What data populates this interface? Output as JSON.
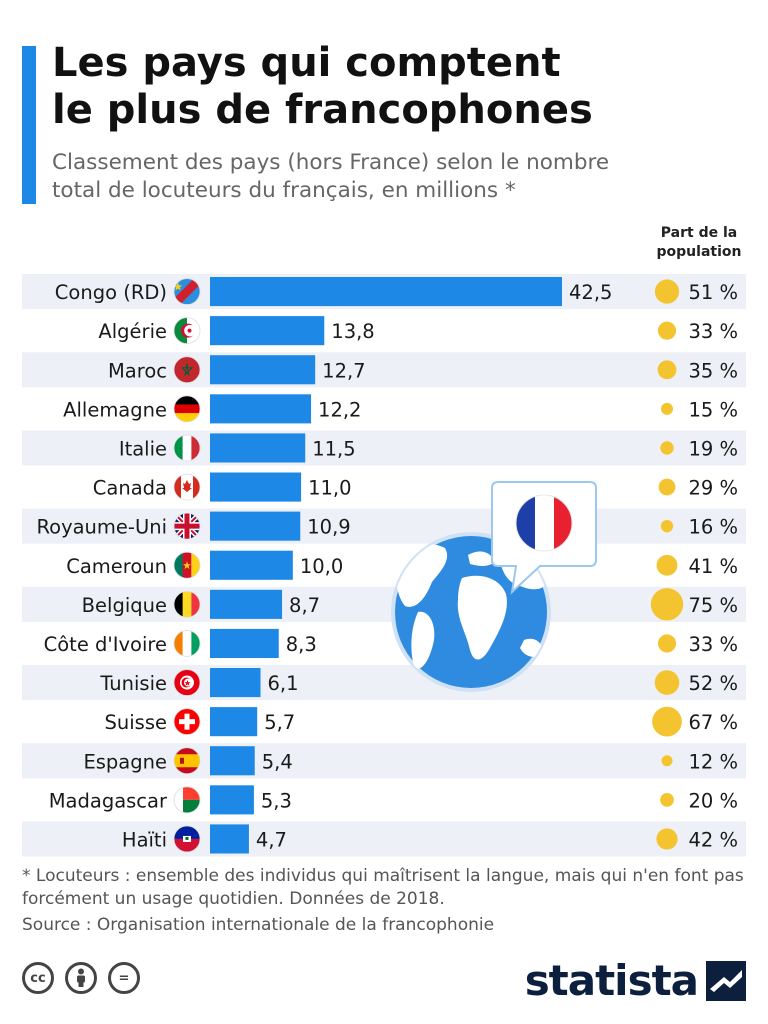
{
  "header": {
    "title": "Les pays qui comptent\nle plus de francophones",
    "subtitle": "Classement des pays (hors France) selon le nombre\ntotal de locuteurs du français, en millions *"
  },
  "column_header": "Part de la\npopulation",
  "colors": {
    "accent": "#1d88e6",
    "bar": "#1d88e6",
    "bubble": "#f4c430",
    "row_band": "#edf1f7",
    "brand": "#0c1f3d"
  },
  "chart_data": {
    "type": "bar",
    "orientation": "horizontal",
    "categories": [
      "Congo (RD)",
      "Algérie",
      "Maroc",
      "Allemagne",
      "Italie",
      "Canada",
      "Royaume-Uni",
      "Cameroun",
      "Belgique",
      "Côte d'Ivoire",
      "Tunisie",
      "Suisse",
      "Espagne",
      "Madagascar",
      "Haïti"
    ],
    "values": [
      42.5,
      13.8,
      12.7,
      12.2,
      11.5,
      11.0,
      10.9,
      10.0,
      8.7,
      8.3,
      6.1,
      5.7,
      5.4,
      5.3,
      4.7
    ],
    "value_labels": [
      "42,5",
      "13,8",
      "12,7",
      "12,2",
      "11,5",
      "11,0",
      "10,9",
      "10,0",
      "8,7",
      "8,3",
      "6,1",
      "5,7",
      "5,4",
      "5,3",
      "4,7"
    ],
    "population_share": [
      51,
      33,
      35,
      15,
      19,
      29,
      16,
      41,
      75,
      33,
      52,
      67,
      12,
      20,
      42
    ],
    "population_share_labels": [
      "51 %",
      "33 %",
      "35 %",
      "15 %",
      "19 %",
      "29 %",
      "16 %",
      "41 %",
      "75 %",
      "33 %",
      "52 %",
      "67 %",
      "12 %",
      "20 %",
      "42 %"
    ],
    "flags": [
      "flag-cd-icon",
      "flag-dz-icon",
      "flag-ma-icon",
      "flag-de-icon",
      "flag-it-icon",
      "flag-ca-icon",
      "flag-gb-icon",
      "flag-cm-icon",
      "flag-be-icon",
      "flag-ci-icon",
      "flag-tn-icon",
      "flag-ch-icon",
      "flag-es-icon",
      "flag-mg-icon",
      "flag-ht-icon"
    ],
    "xlim": [
      0,
      42.5
    ],
    "grid": false,
    "legend": "none"
  },
  "footer": {
    "footnote": "* Locuteurs : ensemble des individus qui maîtrisent la langue, mais qui n'en font pas forcément un usage quotidien. Données de 2018.",
    "source": "Source : Organisation internationale de la francophonie",
    "icons": [
      "cc-icon",
      "by-icon",
      "nd-icon"
    ],
    "cc_text": "cc",
    "nd_text": "=",
    "brand": "statista"
  }
}
